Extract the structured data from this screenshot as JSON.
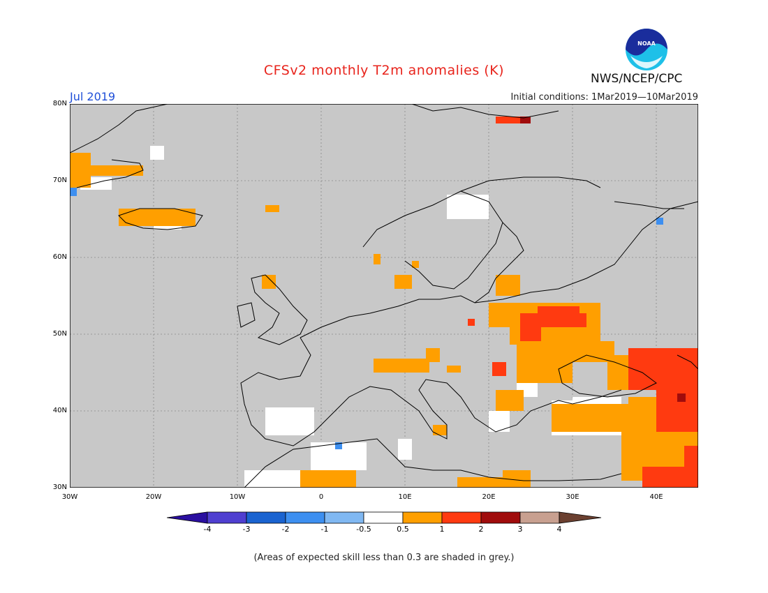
{
  "title": "CFSv2 monthly T2m anomalies (K)",
  "period": "Jul 2019",
  "initial_conditions": "Initial conditions: 1Mar2019—10Mar2019",
  "agency": "NWS/NCEP/CPC",
  "logo_text": "NOAA",
  "footnote": "(Areas of expected skill less than 0.3 are shaded in grey.)",
  "axes": {
    "lat_labels": [
      "80N",
      "70N",
      "60N",
      "50N",
      "40N",
      "30N"
    ],
    "lon_labels": [
      "30W",
      "20W",
      "10W",
      "0",
      "10E",
      "20E",
      "30E",
      "40E"
    ],
    "lat_range": [
      30,
      80
    ],
    "lon_range": [
      -30,
      45
    ]
  },
  "colorbar": {
    "labels": [
      "-4",
      "-3",
      "-2",
      "-1",
      "-0.5",
      "0.5",
      "1",
      "2",
      "3",
      "4"
    ],
    "colors": [
      "#2a0fa0",
      "#4f3fd0",
      "#1a63d0",
      "#3d8ff0",
      "#80b8f2",
      "#ffffff",
      "#ff9f00",
      "#ff3a10",
      "#a00c0c",
      "#c8a090",
      "#6b4030"
    ]
  },
  "colors": {
    "skill_grey": "#c8c8c8",
    "title_red": "#e8241c",
    "period_blue": "#1f4fd8"
  }
}
